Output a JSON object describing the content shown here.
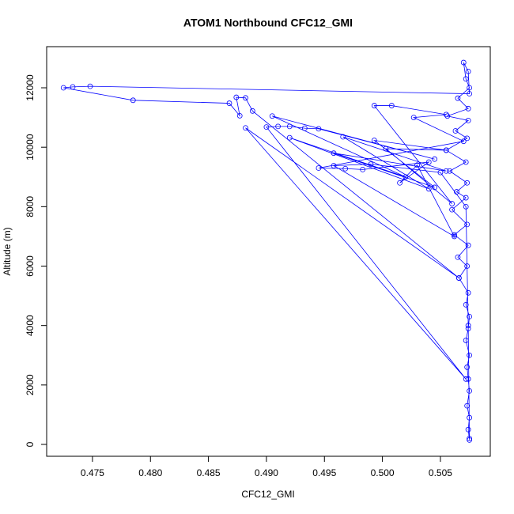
{
  "chart_data": {
    "type": "line",
    "title": "ATOM1 Northbound CFC12_GMI",
    "x_label": "CFC12_GMI",
    "y_label": "Altitude (m)",
    "xlim": [
      0.47105,
      0.5093
    ],
    "ylim": [
      -399,
      13384
    ],
    "xticks": [
      0.475,
      {
        "value": 0.48,
        "label": "0.480"
      },
      0.485,
      {
        "value": 0.49,
        "label": "0.490"
      },
      0.495,
      {
        "value": 0.5,
        "label": "0.500"
      },
      0.505
    ],
    "yticks": [
      0,
      2000,
      4000,
      6000,
      8000,
      10000,
      12000
    ],
    "grid": false,
    "series": [
      {
        "name": "CFC12_GMI",
        "color": "#0000ff",
        "x": [
          0.5075,
          0.5074,
          0.5075,
          0.5073,
          0.5075,
          0.5074,
          0.5073,
          0.5075,
          0.5072,
          0.5074,
          0.5075,
          0.5072,
          0.5074,
          0.5066,
          0.5073,
          0.5065,
          0.5074,
          0.5062,
          0.5073,
          0.506,
          0.5072,
          0.5064,
          0.5073,
          0.5058,
          0.5072,
          0.5055,
          0.5073,
          0.5063,
          0.5074,
          0.5056,
          0.5074,
          0.5065,
          0.5075,
          0.5072,
          0.507,
          0.5074,
          0.5075,
          0.4748,
          0.4733,
          0.4725,
          0.4785,
          0.4868,
          0.4877,
          0.4874,
          0.4882,
          0.4888,
          0.5066,
          0.4882,
          0.5072,
          0.49,
          0.491,
          0.492,
          0.4933,
          0.4945,
          0.5045,
          0.4905,
          0.502,
          0.492,
          0.504,
          0.4966,
          0.5055,
          0.4958,
          0.5045,
          0.4993,
          0.5055,
          0.5003,
          0.506,
          0.4993,
          0.5008,
          0.5055,
          0.5027,
          0.507,
          0.4945,
          0.4968,
          0.4983,
          0.504,
          0.5015,
          0.503,
          0.5062,
          0.4958,
          0.499,
          0.505,
          0.5072,
          0.5074,
          0.5075
        ],
        "values": [
          150,
          500,
          900,
          1300,
          1800,
          2200,
          2600,
          3000,
          3500,
          3900,
          4300,
          4700,
          5100,
          5600,
          6000,
          6300,
          6700,
          7050,
          7400,
          7900,
          8300,
          8500,
          8800,
          9200,
          9500,
          9900,
          10300,
          10550,
          10900,
          11050,
          11300,
          11650,
          12000,
          12300,
          12850,
          12550,
          11800,
          12050,
          12030,
          12000,
          11580,
          11480,
          11060,
          11680,
          11660,
          11220,
          5600,
          10650,
          2200,
          10680,
          10700,
          10700,
          10640,
          10620,
          9600,
          11050,
          9000,
          10320,
          8600,
          10350,
          9200,
          9800,
          8650,
          10230,
          9900,
          9950,
          8100,
          11400,
          11400,
          11100,
          11000,
          10200,
          9300,
          9280,
          9250,
          9500,
          8800,
          9400,
          7000,
          9380,
          9430,
          9150,
          8000,
          4000,
          200
        ]
      }
    ]
  }
}
